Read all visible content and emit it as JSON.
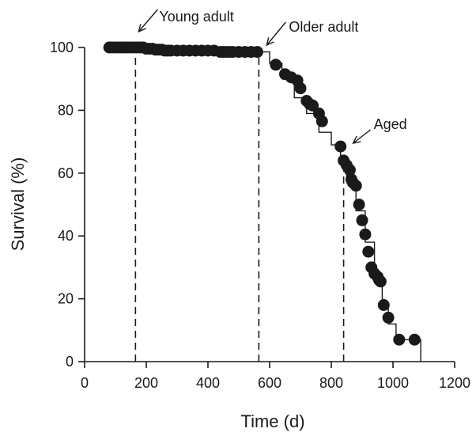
{
  "chart_data": {
    "type": "scatter",
    "xlabel": "Time  (d)",
    "ylabel": "Survival (%)",
    "xlim": [
      0,
      1200
    ],
    "ylim": [
      0,
      100
    ],
    "xticks": [
      0,
      200,
      400,
      600,
      800,
      1000,
      1200
    ],
    "yticks": [
      0,
      20,
      40,
      60,
      80,
      100
    ],
    "grid": false,
    "colors": {
      "points": "#1a1a1a",
      "lines": "#1a1a1a"
    },
    "step_curve": {
      "x": [
        70,
        555,
        555,
        600,
        600,
        640,
        640,
        680,
        680,
        720,
        720,
        760,
        760,
        800,
        800,
        830,
        830,
        850,
        850,
        880,
        880,
        910,
        910,
        940,
        940,
        965,
        965,
        985,
        985,
        1010,
        1010,
        1090,
        1090
      ],
      "y": [
        100,
        100,
        98.6,
        98.6,
        95,
        95,
        90,
        90,
        84,
        84,
        79,
        79,
        73,
        73,
        69,
        69,
        63,
        63,
        57,
        57,
        48,
        48,
        38,
        38,
        28,
        28,
        18,
        18,
        12,
        12,
        7,
        7,
        0
      ]
    },
    "points": {
      "x": [
        80,
        90,
        100,
        110,
        120,
        130,
        140,
        150,
        160,
        170,
        180,
        190,
        200,
        210,
        220,
        230,
        240,
        250,
        260,
        270,
        280,
        300,
        320,
        340,
        360,
        380,
        400,
        420,
        440,
        450,
        460,
        470,
        480,
        500,
        520,
        540,
        560,
        620,
        650,
        670,
        690,
        700,
        720,
        730,
        740,
        760,
        770,
        830,
        840,
        850,
        860,
        865,
        870,
        880,
        890,
        900,
        910,
        920,
        930,
        940,
        950,
        955,
        960,
        970,
        985,
        1020,
        1070
      ],
      "y": [
        100,
        100,
        100,
        100,
        100,
        100,
        100,
        100,
        100,
        100,
        100,
        100,
        99.6,
        99.6,
        99.6,
        99.3,
        99.3,
        99.3,
        99,
        99,
        99,
        99,
        99,
        99,
        99,
        99,
        99,
        99,
        98.6,
        98.6,
        98.6,
        98.6,
        98.6,
        98.6,
        98.6,
        98.6,
        98.6,
        94.5,
        91.5,
        90.5,
        89.5,
        87,
        83,
        82,
        81.5,
        79,
        76.5,
        68.5,
        64,
        62.5,
        61,
        58,
        57,
        56,
        50,
        45,
        40.5,
        35,
        30,
        28,
        27,
        26,
        25.5,
        18,
        14,
        7,
        7
      ]
    },
    "stage_lines": [
      {
        "x": 165,
        "label": "Young adult"
      },
      {
        "x": 565,
        "label": "Older adult"
      },
      {
        "x": 840,
        "label": "Aged"
      }
    ]
  }
}
